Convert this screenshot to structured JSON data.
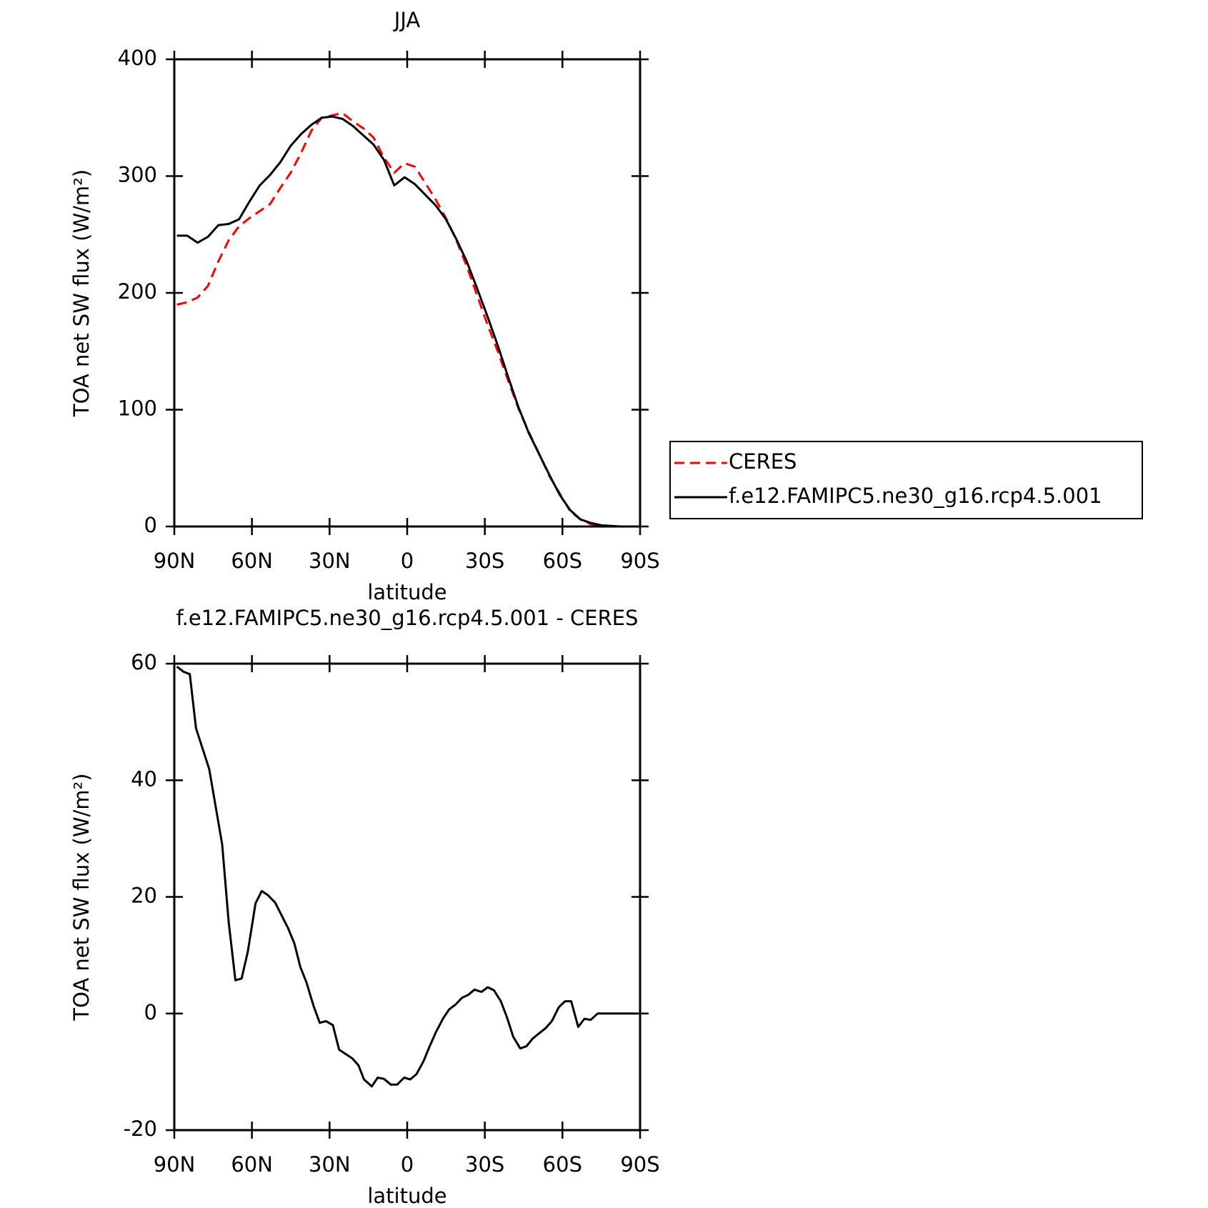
{
  "chart_data": [
    {
      "type": "line",
      "title": "JJA",
      "xlabel": "latitude",
      "ylabel": "TOA net SW flux (W/m²)",
      "x": [
        89,
        85,
        81,
        77,
        73,
        69,
        65,
        61,
        57,
        53,
        49,
        45,
        41,
        37,
        33,
        29,
        25,
        21,
        17,
        13,
        9,
        5,
        1,
        -3,
        -7,
        -11,
        -15,
        -19,
        -23,
        -27,
        -31,
        -35,
        -39,
        -43,
        -47,
        -51,
        -55,
        -59,
        -63,
        -67,
        -71,
        -75,
        -79,
        -83,
        -87
      ],
      "series": [
        {
          "name": "CERES",
          "color": "#ff0000",
          "dash": true,
          "values": [
            190,
            192,
            196,
            206,
            227,
            245,
            257,
            264,
            270,
            276,
            290,
            303,
            320,
            339,
            350,
            352,
            354,
            347,
            341,
            333,
            316,
            303,
            311,
            308,
            294,
            280,
            264,
            245,
            223,
            198,
            173,
            150,
            125,
            101,
            81,
            62,
            43,
            28,
            13,
            6,
            2,
            0.5,
            0,
            0,
            0
          ]
        },
        {
          "name": "f.e12.FAMIPC5.ne30_g16.rcp4.5.001",
          "color": "#000000",
          "dash": false,
          "values": [
            249,
            249,
            243,
            248,
            258,
            259,
            263,
            278,
            292,
            301,
            312,
            326,
            336,
            344,
            350,
            351,
            349,
            343,
            335,
            327,
            314,
            292,
            299,
            293,
            284,
            275,
            263,
            246,
            227,
            204,
            180,
            155,
            128,
            102,
            80,
            62,
            44,
            27,
            14,
            6,
            3,
            1,
            0.5,
            0,
            0
          ]
        }
      ],
      "xlim": [
        90,
        -90
      ],
      "xticks": [
        {
          "value": 90,
          "label": "90N"
        },
        {
          "value": 60,
          "label": "60N"
        },
        {
          "value": 30,
          "label": "30N"
        },
        0,
        {
          "value": -30,
          "label": "30S"
        },
        {
          "value": -60,
          "label": "60S"
        },
        {
          "value": -90,
          "label": "90S"
        }
      ],
      "ylim": [
        0,
        400
      ],
      "yticks": [
        0,
        100,
        200,
        300,
        400
      ],
      "legend": "right"
    },
    {
      "type": "line",
      "title": "f.e12.FAMIPC5.ne30_g16.rcp4.5.001 - CERES",
      "xlabel": "latitude",
      "ylabel": "TOA net SW flux (W/m²)",
      "x": [
        89,
        86.4,
        84,
        81.6,
        76.5,
        71.5,
        69,
        66.4,
        64,
        61.6,
        58.6,
        56.2,
        53.8,
        51,
        46,
        43.6,
        41.3,
        38.9,
        36.2,
        33.8,
        31.4,
        28.7,
        26.3,
        23.9,
        21.2,
        18.8,
        16.7,
        13.7,
        11.4,
        9,
        6.3,
        3.9,
        1.2,
        -1.2,
        -3.6,
        -6.3,
        -8.7,
        -11.1,
        -13.8,
        -16.2,
        -18.6,
        -21.2,
        -23.6,
        -26,
        -28.7,
        -31.1,
        -33.5,
        -36.2,
        -38.6,
        -41,
        -43.7,
        -46.1,
        -48.5,
        -53.5,
        -55.9,
        -58.6,
        -61,
        -63.4,
        -66.1,
        -68.5,
        -70.9,
        -73.6,
        -79,
        -88.8
      ],
      "series": [
        {
          "name": null,
          "color": "#000000",
          "dash": false,
          "values": [
            59.5,
            58.6,
            58.2,
            48.9,
            41.9,
            29,
            15.7,
            5.7,
            6,
            10.6,
            18.9,
            21,
            20.3,
            19,
            14.6,
            12,
            8,
            5.3,
            1.3,
            -1.6,
            -1.3,
            -2,
            -6.2,
            -6.9,
            -7.7,
            -8.9,
            -11.3,
            -12.5,
            -11,
            -11.2,
            -12.2,
            -12.2,
            -11,
            -11.3,
            -10.4,
            -8.2,
            -5.6,
            -3.2,
            -0.9,
            0.7,
            1.5,
            2.7,
            3.2,
            4.1,
            3.7,
            4.5,
            4,
            2.1,
            -0.7,
            -4,
            -6,
            -5.6,
            -4.3,
            -2.5,
            -1.3,
            1.1,
            2.1,
            2.1,
            -2.3,
            -0.9,
            -1.1,
            0,
            0,
            0
          ]
        }
      ],
      "xlim": [
        90,
        -90
      ],
      "xticks": [
        {
          "value": 90,
          "label": "90N"
        },
        {
          "value": 60,
          "label": "60N"
        },
        {
          "value": 30,
          "label": "30N"
        },
        0,
        {
          "value": -30,
          "label": "30S"
        },
        {
          "value": -60,
          "label": "60S"
        },
        {
          "value": -90,
          "label": "90S"
        }
      ],
      "ylim": [
        -20,
        60
      ],
      "yticks": [
        -20,
        0,
        20,
        40,
        60
      ]
    }
  ]
}
